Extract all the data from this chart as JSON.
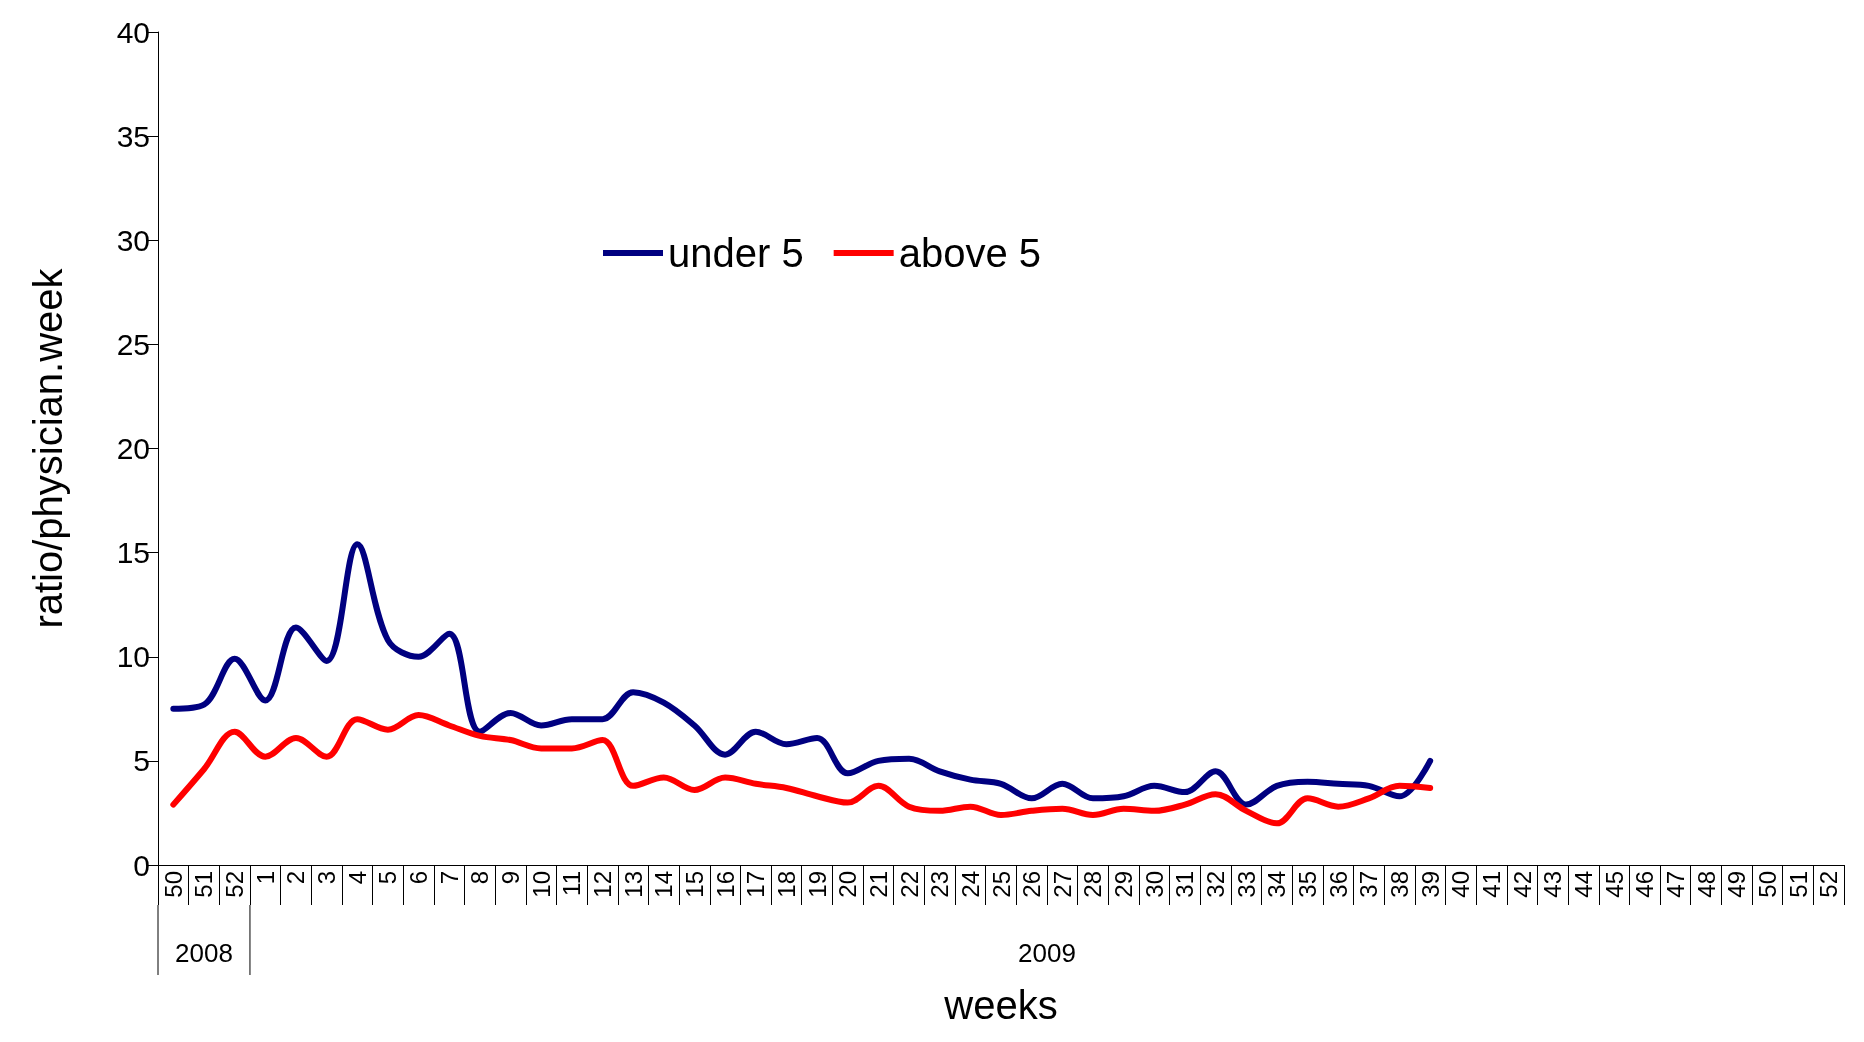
{
  "chart_data": {
    "type": "line",
    "xlabel": "weeks",
    "ylabel": "ratio/physician.week",
    "categories": [
      "50",
      "51",
      "52",
      "1",
      "2",
      "3",
      "4",
      "5",
      "6",
      "7",
      "8",
      "9",
      "10",
      "11",
      "12",
      "13",
      "14",
      "15",
      "16",
      "17",
      "18",
      "19",
      "20",
      "21",
      "22",
      "23",
      "24",
      "25",
      "26",
      "27",
      "28",
      "29",
      "30",
      "31",
      "32",
      "33",
      "34",
      "35",
      "36",
      "37",
      "38",
      "39",
      "40",
      "41",
      "42",
      "43",
      "44",
      "45",
      "46",
      "47",
      "48",
      "49",
      "50",
      "51",
      "52"
    ],
    "series": [
      {
        "name": "under 5",
        "color": "#000080",
        "values": [
          7.5,
          7.7,
          9.9,
          7.9,
          11.4,
          9.8,
          15.4,
          10.8,
          10.0,
          11.1,
          6.4,
          7.3,
          6.7,
          7.0,
          7.0,
          8.3,
          7.8,
          6.7,
          5.3,
          6.4,
          5.8,
          6.1,
          4.4,
          5.0,
          5.1,
          4.5,
          4.1,
          3.9,
          3.2,
          3.9,
          3.2,
          3.3,
          3.8,
          3.5,
          4.5,
          2.9,
          3.8,
          4.0,
          3.9,
          3.8,
          3.3,
          5.0,
          null,
          null,
          null,
          null,
          null,
          null,
          null,
          null,
          null,
          null,
          null,
          null,
          null
        ]
      },
      {
        "name": "above 5",
        "color": "#ff0000",
        "values": [
          2.9,
          4.6,
          6.4,
          5.2,
          6.1,
          5.2,
          7.0,
          6.5,
          7.2,
          6.7,
          6.2,
          6.0,
          5.6,
          5.6,
          6.0,
          3.8,
          4.2,
          3.6,
          4.2,
          3.9,
          3.7,
          3.3,
          3.0,
          3.8,
          2.8,
          2.6,
          2.8,
          2.4,
          2.6,
          2.7,
          2.4,
          2.7,
          2.6,
          2.9,
          3.4,
          2.6,
          2.0,
          3.2,
          2.8,
          3.2,
          3.8,
          3.7,
          null,
          null,
          null,
          null,
          null,
          null,
          null,
          null,
          null,
          null,
          null,
          null,
          null
        ]
      }
    ],
    "ylim": [
      0,
      40
    ],
    "yticks": [
      0,
      5,
      10,
      15,
      20,
      25,
      30,
      35,
      40
    ],
    "legend": "top",
    "grid": false,
    "marker": "none",
    "line_style": "solid",
    "annotations": [
      "2008",
      "2009"
    ]
  }
}
